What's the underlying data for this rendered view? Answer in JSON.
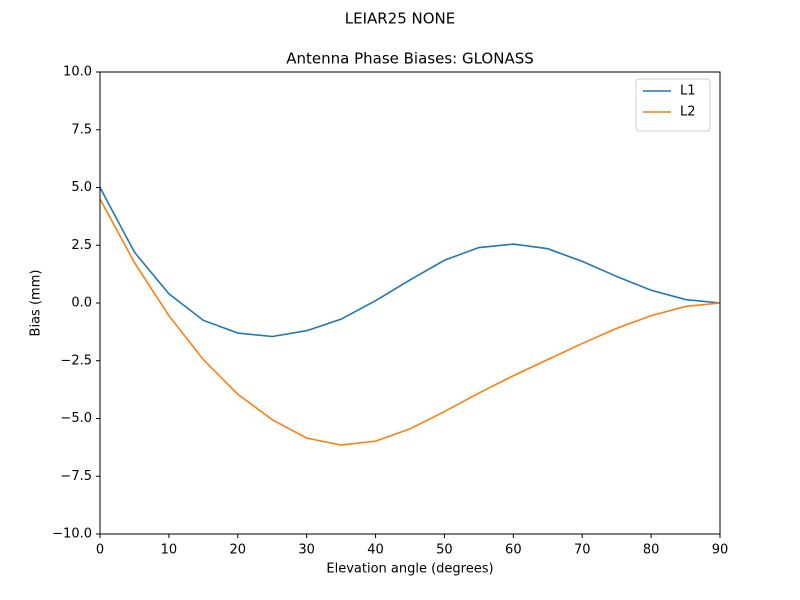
{
  "chart_data": {
    "type": "line",
    "suptitle": "LEIAR25          NONE",
    "title": "Antenna Phase Biases: GLONASS",
    "x_label": "Elevation angle (degrees)",
    "y_label": "Bias (mm)",
    "x": [
      0,
      5,
      10,
      15,
      20,
      25,
      30,
      35,
      40,
      45,
      50,
      55,
      60,
      65,
      70,
      75,
      80,
      85,
      90
    ],
    "series": [
      {
        "name": "L1",
        "color": "#1f77b4",
        "values": [
          5.0,
          2.2,
          0.4,
          -0.75,
          -1.3,
          -1.45,
          -1.2,
          -0.7,
          0.1,
          1.0,
          1.85,
          2.4,
          2.55,
          2.35,
          1.8,
          1.15,
          0.55,
          0.15,
          0.0
        ]
      },
      {
        "name": "L2",
        "color": "#ff7f0e",
        "values": [
          4.5,
          1.75,
          -0.55,
          -2.45,
          -3.95,
          -5.05,
          -5.85,
          -6.15,
          -5.98,
          -5.45,
          -4.7,
          -3.9,
          -3.15,
          -2.45,
          -1.75,
          -1.1,
          -0.55,
          -0.15,
          0.0
        ]
      }
    ],
    "xlim": [
      0,
      90
    ],
    "xticks": [
      0,
      10,
      20,
      30,
      40,
      50,
      60,
      70,
      80,
      90
    ],
    "ylim": [
      -10,
      10
    ],
    "yticks": [
      {
        "value": -10,
        "label": "−10.0"
      },
      {
        "value": -7.5,
        "label": "−7.5"
      },
      {
        "value": -5,
        "label": "−5.0"
      },
      {
        "value": -2.5,
        "label": "−2.5"
      },
      {
        "value": 0,
        "label": "0.0"
      },
      {
        "value": 2.5,
        "label": "2.5"
      },
      {
        "value": 5,
        "label": "5.0"
      },
      {
        "value": 7.5,
        "label": "7.5"
      },
      {
        "value": 10,
        "label": "10.0"
      }
    ],
    "grid": false,
    "legend": "upper-right"
  }
}
